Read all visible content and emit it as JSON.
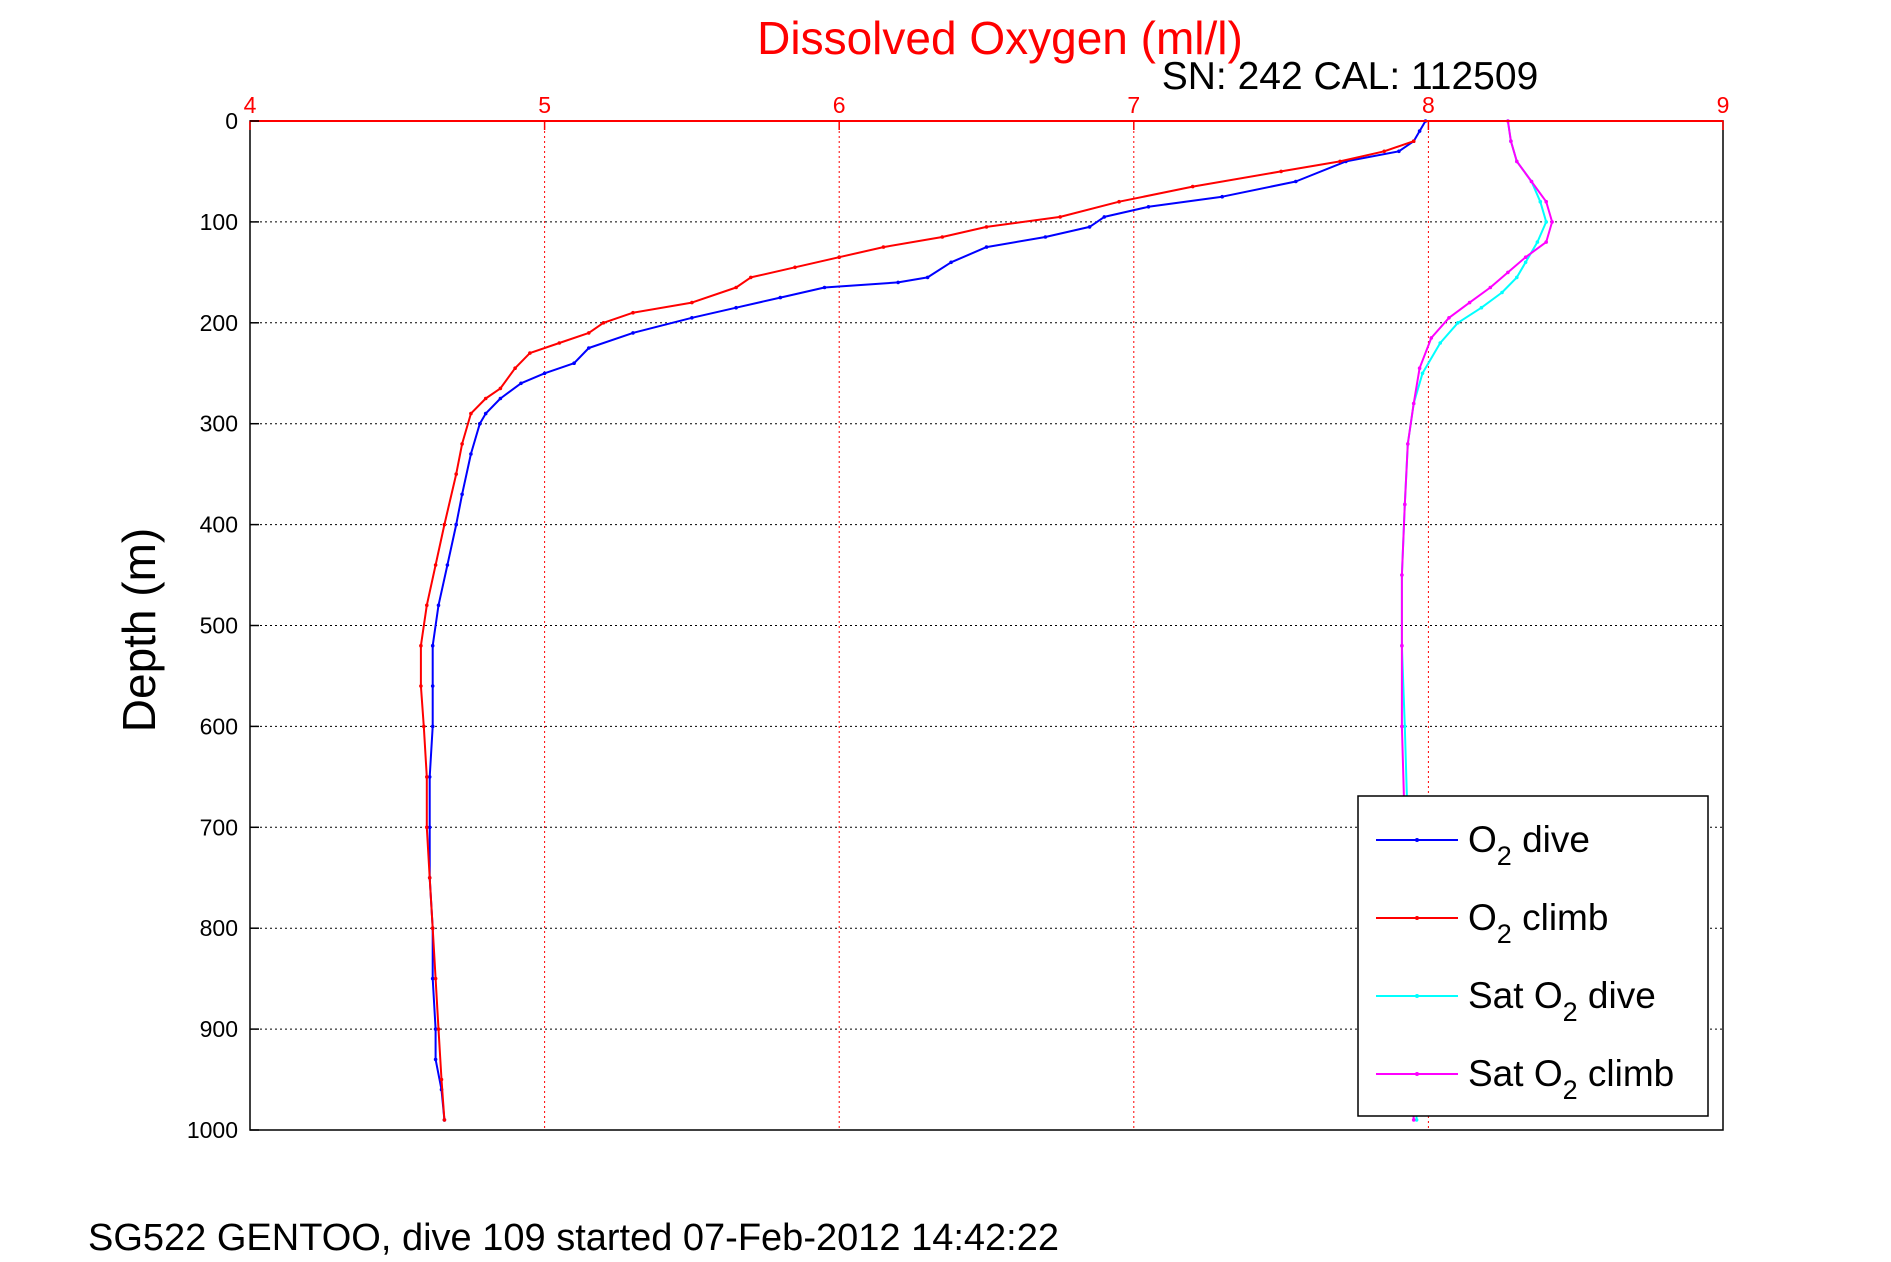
{
  "header": {
    "title": "Dissolved Oxygen (ml/l)",
    "sensor_info": "SN: 242  CAL: 112509"
  },
  "footer": {
    "caption": "SG522 GENTOO, dive 109 started 07-Feb-2012 14:42:22"
  },
  "colors": {
    "title": "#ff0000",
    "x_axis": "#ff0000",
    "y_axis": "#000000",
    "o2_dive": "#0000ff",
    "o2_climb": "#ff0000",
    "sat_dive": "#00ffff",
    "sat_climb": "#ff00ff"
  },
  "chart_data": {
    "type": "line",
    "title": "Dissolved Oxygen (ml/l)",
    "xlabel": "",
    "ylabel": "Depth (m)",
    "xlim": [
      4,
      9
    ],
    "ylim": [
      0,
      1000
    ],
    "y_reversed": true,
    "x_axis_position": "top",
    "grid": true,
    "x_ticks": [
      "4",
      "5",
      "6",
      "7",
      "8",
      "9"
    ],
    "y_ticks": [
      "0",
      "100",
      "200",
      "300",
      "400",
      "500",
      "600",
      "700",
      "800",
      "900",
      "1000"
    ],
    "legend": {
      "position": "bottom-right",
      "entries": [
        {
          "key": "o2_dive",
          "label": "O",
          "sub": "2",
          "rest": " dive"
        },
        {
          "key": "o2_climb",
          "label": "O",
          "sub": "2",
          "rest": " climb"
        },
        {
          "key": "sat_dive",
          "label": "Sat O",
          "sub": "2",
          "rest": " dive"
        },
        {
          "key": "sat_climb",
          "label": "Sat O",
          "sub": "2",
          "rest": " climb"
        }
      ]
    },
    "series": [
      {
        "key": "o2_dive",
        "x": [
          7.99,
          7.97,
          7.95,
          7.9,
          7.72,
          7.55,
          7.3,
          7.05,
          6.9,
          6.85,
          6.7,
          6.5,
          6.38,
          6.3,
          6.2,
          5.95,
          5.8,
          5.65,
          5.5,
          5.3,
          5.15,
          5.1,
          5.0,
          4.92,
          4.85,
          4.8,
          4.78,
          4.75,
          4.72,
          4.7,
          4.67,
          4.64,
          4.62,
          4.62,
          4.62,
          4.61,
          4.61,
          4.61,
          4.62,
          4.62,
          4.63,
          4.63,
          4.65,
          4.66
        ],
        "y": [
          0,
          10,
          20,
          30,
          40,
          60,
          75,
          85,
          95,
          105,
          115,
          125,
          140,
          155,
          160,
          165,
          175,
          185,
          195,
          210,
          225,
          240,
          250,
          260,
          275,
          290,
          300,
          330,
          370,
          400,
          440,
          480,
          520,
          560,
          600,
          650,
          700,
          750,
          800,
          850,
          900,
          930,
          960,
          990
        ]
      },
      {
        "key": "o2_climb",
        "x": [
          7.95,
          7.85,
          7.7,
          7.5,
          7.2,
          6.95,
          6.75,
          6.5,
          6.35,
          6.15,
          6.0,
          5.85,
          5.7,
          5.65,
          5.5,
          5.3,
          5.2,
          5.15,
          5.05,
          4.95,
          4.9,
          4.85,
          4.8,
          4.75,
          4.72,
          4.7,
          4.66,
          4.63,
          4.6,
          4.58,
          4.58,
          4.59,
          4.6,
          4.6,
          4.61,
          4.62,
          4.63,
          4.64,
          4.65,
          4.66
        ],
        "y": [
          20,
          30,
          40,
          50,
          65,
          80,
          95,
          105,
          115,
          125,
          135,
          145,
          155,
          165,
          180,
          190,
          200,
          210,
          220,
          230,
          245,
          265,
          275,
          290,
          320,
          350,
          400,
          440,
          480,
          520,
          560,
          600,
          650,
          700,
          750,
          800,
          850,
          900,
          950,
          990
        ]
      },
      {
        "key": "sat_dive",
        "x": [
          8.27,
          8.28,
          8.3,
          8.35,
          8.38,
          8.4,
          8.37,
          8.33,
          8.3,
          8.25,
          8.18,
          8.1,
          8.04,
          7.98,
          7.95,
          7.93,
          7.92,
          7.91,
          7.91,
          7.92,
          7.93,
          7.94,
          7.95,
          7.96
        ],
        "y": [
          0,
          20,
          40,
          60,
          80,
          100,
          120,
          140,
          155,
          170,
          185,
          200,
          220,
          250,
          280,
          320,
          380,
          450,
          520,
          600,
          700,
          800,
          900,
          990
        ]
      },
      {
        "key": "sat_climb",
        "x": [
          8.27,
          8.28,
          8.3,
          8.35,
          8.4,
          8.42,
          8.4,
          8.33,
          8.27,
          8.21,
          8.14,
          8.07,
          8.01,
          7.97,
          7.95,
          7.93,
          7.92,
          7.91,
          7.91,
          7.91,
          7.92,
          7.93,
          7.94,
          7.95
        ],
        "y": [
          0,
          20,
          40,
          60,
          80,
          100,
          120,
          135,
          150,
          165,
          180,
          195,
          215,
          245,
          280,
          320,
          380,
          450,
          520,
          600,
          700,
          800,
          900,
          990
        ]
      }
    ]
  }
}
